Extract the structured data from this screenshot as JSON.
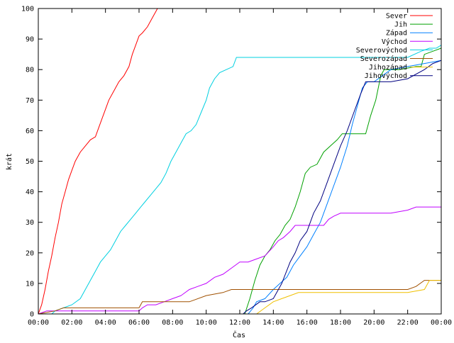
{
  "chart_data": {
    "type": "line",
    "title": "",
    "xlabel": "Čas",
    "ylabel": "krát",
    "xlim": [
      0,
      24
    ],
    "ylim": [
      0,
      100
    ],
    "x_ticks": [
      "00:00",
      "02:00",
      "04:00",
      "06:00",
      "08:00",
      "10:00",
      "12:00",
      "14:00",
      "16:00",
      "18:00",
      "20:00",
      "22:00",
      "00:00"
    ],
    "y_ticks": [
      0,
      10,
      20,
      30,
      40,
      50,
      60,
      70,
      80,
      90,
      100
    ],
    "grid": false,
    "legend_position": "top-right",
    "series": [
      {
        "name": "Sever",
        "color": "#ff0000",
        "points": [
          [
            0.0,
            0
          ],
          [
            0.2,
            3
          ],
          [
            0.4,
            8
          ],
          [
            0.6,
            14
          ],
          [
            0.8,
            19
          ],
          [
            1.0,
            25
          ],
          [
            1.2,
            30
          ],
          [
            1.4,
            36
          ],
          [
            1.6,
            40
          ],
          [
            1.8,
            44
          ],
          [
            2.0,
            47
          ],
          [
            2.2,
            50
          ],
          [
            2.5,
            53
          ],
          [
            2.8,
            55
          ],
          [
            3.1,
            57
          ],
          [
            3.4,
            58
          ],
          [
            3.6,
            61
          ],
          [
            3.8,
            64
          ],
          [
            4.0,
            67
          ],
          [
            4.2,
            70
          ],
          [
            4.5,
            73
          ],
          [
            4.8,
            76
          ],
          [
            5.1,
            78
          ],
          [
            5.4,
            81
          ],
          [
            5.6,
            85
          ],
          [
            5.8,
            88
          ],
          [
            6.0,
            91
          ],
          [
            6.2,
            92
          ],
          [
            6.5,
            94
          ],
          [
            6.8,
            97
          ],
          [
            7.0,
            99
          ],
          [
            7.1,
            100
          ]
        ]
      },
      {
        "name": "Jih",
        "color": "#00a000",
        "points": [
          [
            12.3,
            0
          ],
          [
            12.6,
            5
          ],
          [
            12.9,
            11
          ],
          [
            13.2,
            16
          ],
          [
            13.5,
            19
          ],
          [
            13.8,
            21
          ],
          [
            14.1,
            24
          ],
          [
            14.4,
            26
          ],
          [
            14.7,
            29
          ],
          [
            15.0,
            31
          ],
          [
            15.3,
            35
          ],
          [
            15.6,
            40
          ],
          [
            15.9,
            46
          ],
          [
            16.2,
            48
          ],
          [
            16.6,
            49
          ],
          [
            17.0,
            53
          ],
          [
            17.4,
            55
          ],
          [
            17.8,
            57
          ],
          [
            18.1,
            59
          ],
          [
            18.5,
            59
          ],
          [
            19.5,
            59
          ],
          [
            19.8,
            65
          ],
          [
            20.1,
            70
          ],
          [
            20.4,
            78
          ],
          [
            20.6,
            80
          ],
          [
            21.5,
            80
          ],
          [
            22.5,
            81
          ],
          [
            22.8,
            81
          ],
          [
            23.0,
            85
          ],
          [
            23.5,
            86
          ],
          [
            24.0,
            87
          ]
        ]
      },
      {
        "name": "Západ",
        "color": "#0080ff",
        "points": [
          [
            12.5,
            0
          ],
          [
            12.8,
            2
          ],
          [
            13.0,
            4
          ],
          [
            13.5,
            5
          ],
          [
            14.0,
            8
          ],
          [
            14.4,
            10
          ],
          [
            14.8,
            12
          ],
          [
            15.2,
            16
          ],
          [
            15.6,
            19
          ],
          [
            16.0,
            22
          ],
          [
            16.4,
            26
          ],
          [
            16.8,
            30
          ],
          [
            17.2,
            36
          ],
          [
            17.6,
            42
          ],
          [
            18.0,
            48
          ],
          [
            18.4,
            55
          ],
          [
            18.7,
            62
          ],
          [
            19.0,
            68
          ],
          [
            19.3,
            74
          ],
          [
            19.6,
            76
          ],
          [
            20.0,
            76
          ],
          [
            20.5,
            78
          ],
          [
            21.0,
            80
          ],
          [
            22.0,
            81
          ],
          [
            23.0,
            82
          ],
          [
            24.0,
            83
          ]
        ]
      },
      {
        "name": "Východ",
        "color": "#c000ff",
        "points": [
          [
            0.0,
            0
          ],
          [
            0.5,
            1
          ],
          [
            1.0,
            1
          ],
          [
            6.0,
            1
          ],
          [
            6.2,
            2
          ],
          [
            6.5,
            3
          ],
          [
            7.0,
            3
          ],
          [
            7.5,
            4
          ],
          [
            8.0,
            5
          ],
          [
            8.5,
            6
          ],
          [
            9.0,
            8
          ],
          [
            9.5,
            9
          ],
          [
            10.0,
            10
          ],
          [
            10.5,
            12
          ],
          [
            11.0,
            13
          ],
          [
            11.5,
            15
          ],
          [
            12.0,
            17
          ],
          [
            12.5,
            17
          ],
          [
            13.0,
            18
          ],
          [
            13.5,
            19
          ],
          [
            14.0,
            22
          ],
          [
            14.3,
            24
          ],
          [
            14.6,
            25
          ],
          [
            15.0,
            27
          ],
          [
            15.3,
            29
          ],
          [
            15.7,
            29
          ],
          [
            16.0,
            29
          ],
          [
            17.0,
            29
          ],
          [
            17.3,
            31
          ],
          [
            17.6,
            32
          ],
          [
            18.0,
            33
          ],
          [
            19.0,
            33
          ],
          [
            20.0,
            33
          ],
          [
            21.0,
            33
          ],
          [
            22.0,
            34
          ],
          [
            22.5,
            35
          ],
          [
            24.0,
            35
          ]
        ]
      },
      {
        "name": "Severovýchod",
        "color": "#00d0e0",
        "points": [
          [
            0.8,
            0
          ],
          [
            1.0,
            1
          ],
          [
            1.5,
            2
          ],
          [
            2.0,
            3
          ],
          [
            2.5,
            5
          ],
          [
            2.8,
            8
          ],
          [
            3.1,
            11
          ],
          [
            3.4,
            14
          ],
          [
            3.7,
            17
          ],
          [
            4.0,
            19
          ],
          [
            4.3,
            21
          ],
          [
            4.6,
            24
          ],
          [
            4.9,
            27
          ],
          [
            5.2,
            29
          ],
          [
            5.5,
            31
          ],
          [
            5.8,
            33
          ],
          [
            6.1,
            35
          ],
          [
            6.4,
            37
          ],
          [
            6.7,
            39
          ],
          [
            7.0,
            41
          ],
          [
            7.3,
            43
          ],
          [
            7.6,
            46
          ],
          [
            7.9,
            50
          ],
          [
            8.2,
            53
          ],
          [
            8.5,
            56
          ],
          [
            8.8,
            59
          ],
          [
            9.1,
            60
          ],
          [
            9.4,
            62
          ],
          [
            9.7,
            66
          ],
          [
            10.0,
            70
          ],
          [
            10.2,
            74
          ],
          [
            10.5,
            77
          ],
          [
            10.8,
            79
          ],
          [
            11.2,
            80
          ],
          [
            11.6,
            81
          ],
          [
            11.8,
            84
          ],
          [
            12.0,
            84
          ],
          [
            14.0,
            84
          ],
          [
            16.0,
            84
          ],
          [
            18.0,
            84
          ],
          [
            20.0,
            84
          ],
          [
            22.0,
            84
          ],
          [
            22.8,
            86
          ],
          [
            23.3,
            87
          ],
          [
            23.7,
            87
          ],
          [
            24.0,
            88
          ]
        ]
      },
      {
        "name": "Severozápad",
        "color": "#a05000",
        "points": [
          [
            0.0,
            0
          ],
          [
            1.0,
            1
          ],
          [
            1.5,
            2
          ],
          [
            2.5,
            2
          ],
          [
            4.0,
            2
          ],
          [
            5.0,
            2
          ],
          [
            6.0,
            2
          ],
          [
            6.2,
            4
          ],
          [
            8.0,
            4
          ],
          [
            9.0,
            4
          ],
          [
            10.0,
            6
          ],
          [
            11.0,
            7
          ],
          [
            11.5,
            8
          ],
          [
            12.0,
            8
          ],
          [
            14.0,
            8
          ],
          [
            16.0,
            8
          ],
          [
            18.0,
            8
          ],
          [
            20.0,
            8
          ],
          [
            22.0,
            8
          ],
          [
            22.5,
            9
          ],
          [
            23.0,
            11
          ],
          [
            24.0,
            11
          ]
        ]
      },
      {
        "name": "Jihozápad",
        "color": "#f0c000",
        "points": [
          [
            12.0,
            0
          ],
          [
            13.0,
            0
          ],
          [
            13.5,
            2
          ],
          [
            14.0,
            4
          ],
          [
            14.5,
            5
          ],
          [
            15.0,
            6
          ],
          [
            15.5,
            7
          ],
          [
            16.0,
            7
          ],
          [
            18.0,
            7
          ],
          [
            20.0,
            7
          ],
          [
            22.0,
            7
          ],
          [
            23.0,
            8
          ],
          [
            23.3,
            11
          ],
          [
            24.0,
            11
          ]
        ]
      },
      {
        "name": "Jihovýchod",
        "color": "#000080",
        "points": [
          [
            11.5,
            0
          ],
          [
            12.2,
            0
          ],
          [
            12.4,
            1
          ],
          [
            12.7,
            2
          ],
          [
            13.2,
            4
          ],
          [
            13.5,
            4
          ],
          [
            14.0,
            5
          ],
          [
            14.5,
            10
          ],
          [
            15.0,
            17
          ],
          [
            15.3,
            20
          ],
          [
            15.6,
            24
          ],
          [
            16.0,
            27
          ],
          [
            16.4,
            33
          ],
          [
            16.8,
            37
          ],
          [
            17.2,
            43
          ],
          [
            17.6,
            49
          ],
          [
            18.0,
            55
          ],
          [
            18.4,
            60
          ],
          [
            18.8,
            66
          ],
          [
            19.2,
            72
          ],
          [
            19.5,
            76
          ],
          [
            20.0,
            76
          ],
          [
            21.0,
            76
          ],
          [
            22.0,
            77
          ],
          [
            23.0,
            80
          ],
          [
            23.5,
            82
          ],
          [
            24.0,
            83
          ]
        ]
      }
    ]
  }
}
